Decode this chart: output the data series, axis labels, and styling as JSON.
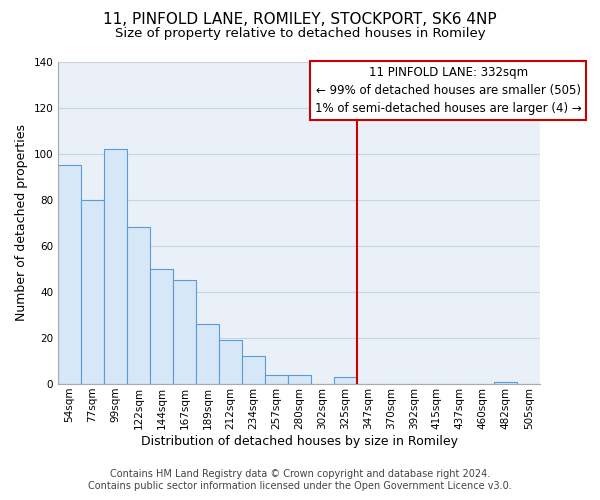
{
  "title": "11, PINFOLD LANE, ROMILEY, STOCKPORT, SK6 4NP",
  "subtitle": "Size of property relative to detached houses in Romiley",
  "xlabel": "Distribution of detached houses by size in Romiley",
  "ylabel": "Number of detached properties",
  "bar_labels": [
    "54sqm",
    "77sqm",
    "99sqm",
    "122sqm",
    "144sqm",
    "167sqm",
    "189sqm",
    "212sqm",
    "234sqm",
    "257sqm",
    "280sqm",
    "302sqm",
    "325sqm",
    "347sqm",
    "370sqm",
    "392sqm",
    "415sqm",
    "437sqm",
    "460sqm",
    "482sqm",
    "505sqm"
  ],
  "bar_values": [
    95,
    80,
    102,
    68,
    50,
    45,
    26,
    19,
    12,
    4,
    4,
    0,
    3,
    0,
    0,
    0,
    0,
    0,
    0,
    1,
    0
  ],
  "bar_color": "#d6e8f7",
  "bar_edge_color": "#5b9bd5",
  "vline_x_index": 12.5,
  "vline_color": "#cc0000",
  "annotation_title": "11 PINFOLD LANE: 332sqm",
  "annotation_line1": "← 99% of detached houses are smaller (505)",
  "annotation_line2": "1% of semi-detached houses are larger (4) →",
  "annotation_box_color": "#ffffff",
  "annotation_box_edge": "#cc0000",
  "ylim": [
    0,
    140
  ],
  "yticks": [
    0,
    20,
    40,
    60,
    80,
    100,
    120,
    140
  ],
  "footnote1": "Contains HM Land Registry data © Crown copyright and database right 2024.",
  "footnote2": "Contains public sector information licensed under the Open Government Licence v3.0.",
  "background_color": "#ffffff",
  "plot_bg_color": "#eaf0f8",
  "grid_color": "#c8d4e0",
  "title_fontsize": 11,
  "subtitle_fontsize": 9.5,
  "axis_label_fontsize": 9,
  "tick_fontsize": 7.5,
  "annotation_fontsize": 8.5,
  "footnote_fontsize": 7
}
